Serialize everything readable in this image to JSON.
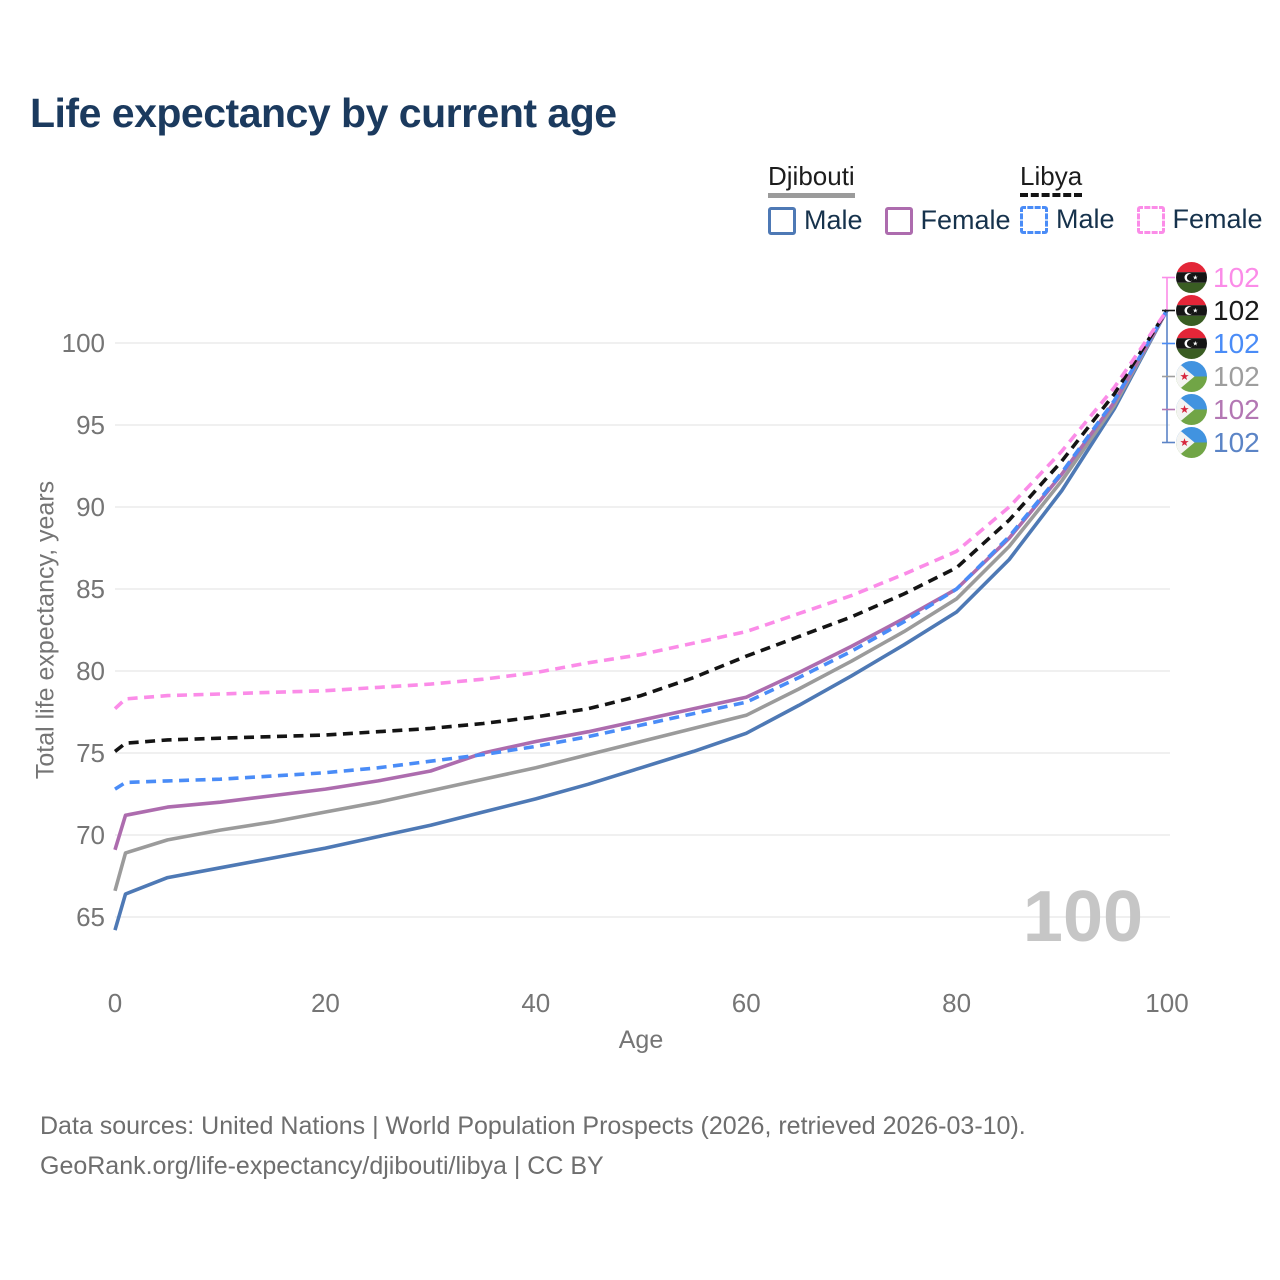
{
  "page_title": "Life expectancy by current age",
  "legend": {
    "groups": [
      {
        "country": "Djibouti",
        "total_line": {
          "style": "solid",
          "color": "#9b9b9b"
        },
        "items": [
          {
            "label": "Male",
            "color": "#4e79b5",
            "dashed": false
          },
          {
            "label": "Female",
            "color": "#ad6cae",
            "dashed": false
          }
        ]
      },
      {
        "country": "Libya",
        "total_line": {
          "style": "dashed",
          "color": "#141414"
        },
        "items": [
          {
            "label": "Male",
            "color": "#4a8cf7",
            "dashed": true
          },
          {
            "label": "Female",
            "color": "#fb8ce8",
            "dashed": true
          }
        ]
      }
    ]
  },
  "watermark": "100",
  "footer": {
    "line1": "Data sources: United Nations | World Population Prospects (2026, retrieved 2026-03-10).",
    "line2": "GeoRank.org/life-expectancy/djibouti/libya | CC BY"
  },
  "chart_data": {
    "type": "line",
    "title": "Life expectancy by current age",
    "xlabel": "Age",
    "ylabel": "Total life expectancy, years",
    "xlim": [
      0,
      100
    ],
    "ylim": [
      63.5,
      103
    ],
    "x_ticks": [
      0,
      20,
      40,
      60,
      80,
      100
    ],
    "y_ticks": [
      65,
      70,
      75,
      80,
      85,
      90,
      95,
      100
    ],
    "grid": "horizontal-only",
    "grid_color": "#ebebeb",
    "tick_label_color": "#757575",
    "ages": [
      0,
      1,
      5,
      10,
      15,
      20,
      25,
      30,
      35,
      40,
      45,
      50,
      55,
      60,
      65,
      70,
      75,
      80,
      85,
      90,
      95,
      100
    ],
    "series": [
      {
        "id": "djibouti-male",
        "country": "Djibouti",
        "group": "Male",
        "color": "#4e79b5",
        "dashed": false,
        "values": [
          64.2,
          66.4,
          67.4,
          68.0,
          68.6,
          69.2,
          69.9,
          70.6,
          71.4,
          72.2,
          73.1,
          74.1,
          75.1,
          76.2,
          77.9,
          79.7,
          81.6,
          83.6,
          86.8,
          91.0,
          96.0,
          102
        ]
      },
      {
        "id": "djibouti-total",
        "country": "Djibouti",
        "group": "Both sexes",
        "color": "#9b9b9b",
        "dashed": false,
        "values": [
          66.6,
          68.9,
          69.7,
          70.3,
          70.8,
          71.4,
          72.0,
          72.7,
          73.4,
          74.1,
          74.9,
          75.7,
          76.5,
          77.3,
          78.9,
          80.6,
          82.4,
          84.4,
          87.6,
          91.6,
          96.2,
          102
        ]
      },
      {
        "id": "djibouti-female",
        "country": "Djibouti",
        "group": "Female",
        "color": "#ad6cae",
        "dashed": false,
        "values": [
          69.1,
          71.2,
          71.7,
          72.0,
          72.4,
          72.8,
          73.3,
          73.9,
          75.0,
          75.7,
          76.3,
          77.0,
          77.7,
          78.4,
          79.9,
          81.5,
          83.2,
          85.0,
          88.1,
          92.0,
          96.4,
          102
        ]
      },
      {
        "id": "libya-male",
        "country": "Libya",
        "group": "Male",
        "color": "#4a8cf7",
        "dashed": true,
        "values": [
          72.8,
          73.2,
          73.3,
          73.4,
          73.6,
          73.8,
          74.1,
          74.5,
          74.9,
          75.4,
          76.0,
          76.7,
          77.4,
          78.1,
          79.6,
          81.2,
          83.0,
          85.0,
          88.2,
          92.1,
          96.5,
          102
        ]
      },
      {
        "id": "libya-total",
        "country": "Libya",
        "group": "Both sexes",
        "color": "#141414",
        "dashed": true,
        "values": [
          75.1,
          75.6,
          75.8,
          75.9,
          76.0,
          76.1,
          76.3,
          76.5,
          76.8,
          77.2,
          77.7,
          78.5,
          79.6,
          80.9,
          82.1,
          83.3,
          84.7,
          86.3,
          89.2,
          92.8,
          96.9,
          102
        ]
      },
      {
        "id": "libya-female",
        "country": "Libya",
        "group": "Female",
        "color": "#fb8ce8",
        "dashed": true,
        "values": [
          77.7,
          78.3,
          78.5,
          78.6,
          78.7,
          78.8,
          79.0,
          79.2,
          79.5,
          79.9,
          80.5,
          81.0,
          81.7,
          82.4,
          83.5,
          84.6,
          85.9,
          87.3,
          90.0,
          93.4,
          97.3,
          102
        ]
      }
    ],
    "end_labels": [
      {
        "series": "libya-female",
        "flag": "libya",
        "text": "102",
        "color": "#fb8ce8"
      },
      {
        "series": "libya-total",
        "flag": "libya",
        "text": "102",
        "color": "#1a1a1a"
      },
      {
        "series": "libya-male",
        "flag": "libya",
        "text": "102",
        "color": "#4a8cf7"
      },
      {
        "series": "djibouti-total",
        "flag": "djibouti",
        "text": "102",
        "color": "#9e9e9e"
      },
      {
        "series": "djibouti-female",
        "flag": "djibouti",
        "text": "102",
        "color": "#b377b3"
      },
      {
        "series": "djibouti-male",
        "flag": "djibouti",
        "text": "102",
        "color": "#5b84c6"
      }
    ],
    "flag_colors": {
      "libya": {
        "red": "#e32638",
        "black": "#151515",
        "green": "#3a5d23",
        "crescent_star": "#ffffff"
      },
      "djibouti": {
        "blue": "#4193e0",
        "green": "#71a546",
        "triangle": "#f4f4f2",
        "star": "#d7263d"
      }
    }
  }
}
